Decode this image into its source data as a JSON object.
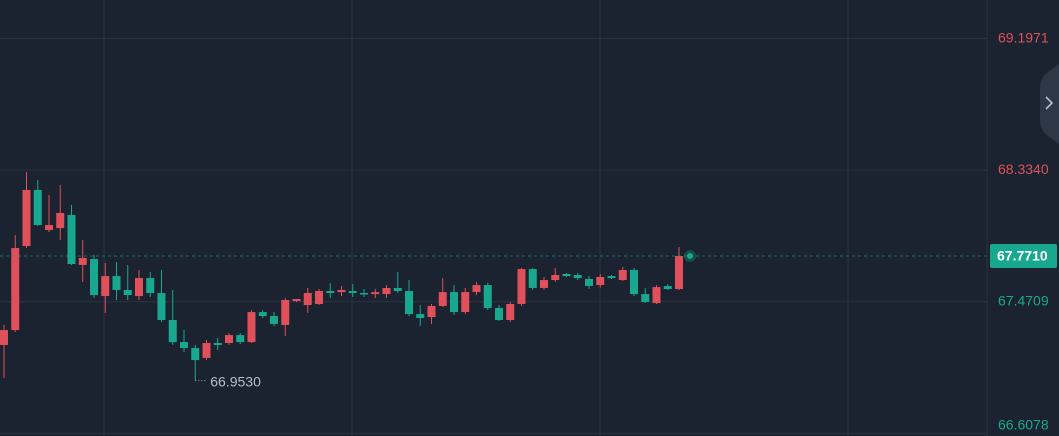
{
  "chart_data": {
    "type": "candlestick",
    "open": [
      67.187,
      67.285,
      67.836,
      68.204,
      67.941,
      67.954,
      68.04,
      67.712,
      67.751,
      67.508,
      67.639,
      67.548,
      67.508,
      67.626,
      67.528,
      67.351,
      67.206,
      67.167,
      67.102,
      67.2,
      67.2,
      67.252,
      67.206,
      67.403,
      67.377,
      67.318,
      67.475,
      67.449,
      67.456,
      67.541,
      67.534,
      67.541,
      67.528,
      67.521,
      67.521,
      67.561,
      67.541,
      67.39,
      67.37,
      67.443,
      67.534,
      67.403,
      67.534,
      67.58,
      67.43,
      67.351,
      67.456,
      67.685,
      67.561,
      67.613,
      67.653,
      67.646,
      67.62,
      67.58,
      67.639,
      67.613,
      67.679,
      67.521,
      67.462,
      67.574,
      67.554
    ],
    "high": [
      67.318,
      67.908,
      68.322,
      68.269,
      68.171,
      68.236,
      68.105,
      67.876,
      67.777,
      67.725,
      67.731,
      67.712,
      67.679,
      67.666,
      67.679,
      67.548,
      67.285,
      67.187,
      67.22,
      67.233,
      67.266,
      67.266,
      67.416,
      67.416,
      67.403,
      67.495,
      67.489,
      67.561,
      67.554,
      67.594,
      67.574,
      67.587,
      67.554,
      67.554,
      67.58,
      67.666,
      67.613,
      67.449,
      67.456,
      67.626,
      67.58,
      67.561,
      67.6,
      67.594,
      67.449,
      67.469,
      67.692,
      67.692,
      67.633,
      67.692,
      67.659,
      67.659,
      67.639,
      67.653,
      67.646,
      67.698,
      67.692,
      67.561,
      67.58,
      67.587,
      67.83
    ],
    "low": [
      66.97,
      67.272,
      67.823,
      67.967,
      67.928,
      67.876,
      67.712,
      67.6,
      67.495,
      67.397,
      67.482,
      67.482,
      67.482,
      67.502,
      67.338,
      67.187,
      67.141,
      66.953,
      67.088,
      67.154,
      67.187,
      67.193,
      67.2,
      67.364,
      67.311,
      67.246,
      67.469,
      67.397,
      67.449,
      67.495,
      67.508,
      67.502,
      67.502,
      67.495,
      67.495,
      67.528,
      67.377,
      67.311,
      67.325,
      67.436,
      67.384,
      67.39,
      67.515,
      67.416,
      67.344,
      67.338,
      67.443,
      67.548,
      67.548,
      67.6,
      67.633,
      67.613,
      67.554,
      67.561,
      67.62,
      67.607,
      67.508,
      67.462,
      67.456,
      67.548,
      67.548
    ],
    "close": [
      67.285,
      67.823,
      68.204,
      67.974,
      67.974,
      68.053,
      67.718,
      67.758,
      67.515,
      67.639,
      67.548,
      67.515,
      67.626,
      67.528,
      67.351,
      67.206,
      67.167,
      67.088,
      67.2,
      67.187,
      67.252,
      67.206,
      67.403,
      67.377,
      67.325,
      67.482,
      67.489,
      67.528,
      67.541,
      67.528,
      67.548,
      67.528,
      67.521,
      67.534,
      67.561,
      67.541,
      67.39,
      67.364,
      67.443,
      67.534,
      67.403,
      67.534,
      67.58,
      67.43,
      67.351,
      67.456,
      67.685,
      67.561,
      67.613,
      67.646,
      67.639,
      67.626,
      67.574,
      67.633,
      67.626,
      67.679,
      67.521,
      67.469,
      67.567,
      67.554,
      67.771
    ],
    "up_color": "#e0505a",
    "down_color": "#17a88f",
    "ylim": [
      66.59,
      69.45
    ],
    "yticks": [
      69.1971,
      {
        "value": 68.334,
        "label": "68.3340"
      },
      67.4709,
      66.6078
    ],
    "grid": true,
    "last_price": {
      "value": 67.771,
      "label": "67.7710"
    },
    "low_label": {
      "value": 66.953,
      "label": "66.9530"
    }
  }
}
